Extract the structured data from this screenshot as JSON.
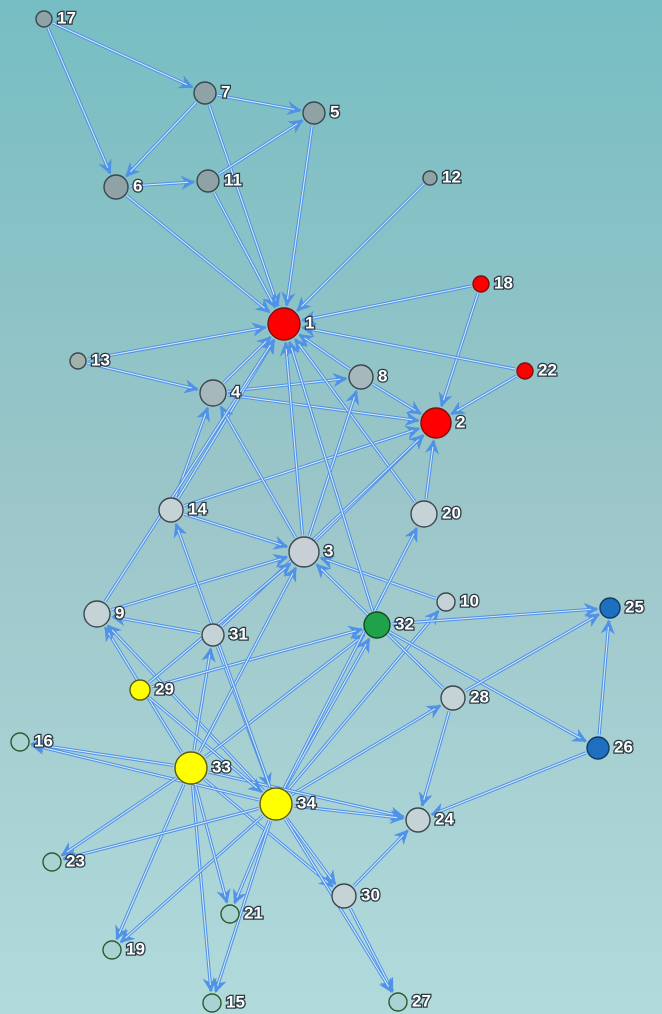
{
  "nodes": [
    {
      "label": "1"
    },
    {
      "label": "2"
    },
    {
      "label": "3"
    },
    {
      "label": "4"
    },
    {
      "label": "5"
    },
    {
      "label": "6"
    },
    {
      "label": "7"
    },
    {
      "label": "8"
    },
    {
      "label": "9"
    },
    {
      "label": "10"
    },
    {
      "label": "11"
    },
    {
      "label": "12"
    },
    {
      "label": "13"
    },
    {
      "label": "14"
    },
    {
      "label": "15"
    },
    {
      "label": "16"
    },
    {
      "label": "17"
    },
    {
      "label": "18"
    },
    {
      "label": "19"
    },
    {
      "label": "20"
    },
    {
      "label": "21"
    },
    {
      "label": "22"
    },
    {
      "label": "23"
    },
    {
      "label": "24"
    },
    {
      "label": "25"
    },
    {
      "label": "26"
    },
    {
      "label": "27"
    },
    {
      "label": "28"
    },
    {
      "label": "29"
    },
    {
      "label": "30"
    },
    {
      "label": "31"
    },
    {
      "label": "32"
    },
    {
      "label": "33"
    },
    {
      "label": "34"
    }
  ]
}
